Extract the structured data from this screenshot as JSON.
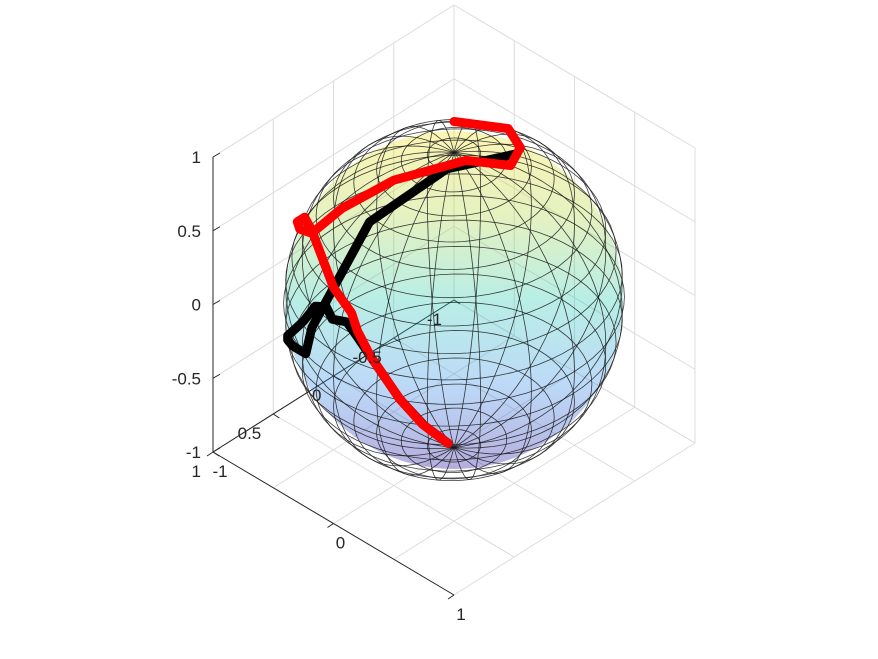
{
  "chart_data": {
    "type": "line",
    "kind": "3d-sphere-trajectory",
    "title": "",
    "xlabel": "",
    "ylabel": "",
    "zlabel": "",
    "xlim": [
      -1,
      1
    ],
    "ylim": [
      -1,
      1
    ],
    "zlim": [
      -1,
      1
    ],
    "x_ticks": [
      {
        "value": -1,
        "label": "-1"
      },
      {
        "value": 0,
        "label": "0"
      },
      {
        "value": 1,
        "label": "1"
      }
    ],
    "y_ticks": [
      {
        "value": -1,
        "label": "-1"
      },
      {
        "value": -0.5,
        "label": "-0.5"
      },
      {
        "value": 0,
        "label": "0"
      },
      {
        "value": 0.5,
        "label": "0.5"
      },
      {
        "value": 1,
        "label": "1"
      }
    ],
    "z_ticks": [
      {
        "value": -1,
        "label": "-1"
      },
      {
        "value": -0.5,
        "label": "-0.5"
      },
      {
        "value": 0,
        "label": "0"
      },
      {
        "value": 0.5,
        "label": "0.5"
      },
      {
        "value": 1,
        "label": "1"
      }
    ],
    "grid": true,
    "sphere": {
      "radius": 1,
      "colormap": "parula",
      "transparent": true
    },
    "series": [
      {
        "color": "#000000",
        "points": [
          [
            -0.05,
            0.0,
            -0.995
          ],
          [
            -0.25,
            0.0,
            -0.97
          ],
          [
            -0.45,
            0.0,
            -0.89
          ],
          [
            -0.69,
            0.0,
            -0.72
          ],
          [
            -0.78,
            0.02,
            -0.62
          ],
          [
            -0.84,
            0.05,
            -0.53
          ],
          [
            -0.85,
            0.1,
            -0.5
          ],
          [
            -0.86,
            0.15,
            -0.47
          ],
          [
            -0.9,
            0.16,
            -0.4
          ],
          [
            -0.9,
            0.25,
            -0.35
          ],
          [
            -0.85,
            0.4,
            -0.35
          ],
          [
            -0.78,
            0.55,
            -0.3
          ],
          [
            -0.7,
            0.68,
            -0.23
          ],
          [
            -0.6,
            0.78,
            -0.16
          ],
          [
            -0.48,
            0.86,
            -0.1
          ],
          [
            -0.35,
            0.93,
            -0.03
          ],
          [
            -0.27,
            0.96,
            0.0
          ],
          [
            -0.22,
            0.96,
            0.2
          ],
          [
            -0.1,
            0.6,
            0.79
          ],
          [
            0.07,
            0.13,
            0.99
          ],
          [
            0.2,
            -0.3,
            0.93
          ]
        ]
      },
      {
        "color": "#ff0000",
        "points": [
          [
            -0.05,
            0.0,
            -0.995
          ],
          [
            -0.26,
            0.0,
            -0.97
          ],
          [
            -0.45,
            0.0,
            -0.89
          ],
          [
            -0.69,
            0.0,
            -0.72
          ],
          [
            -0.78,
            0.0,
            -0.62
          ],
          [
            -0.8,
            0.0,
            -0.6
          ],
          [
            -0.85,
            0.0,
            -0.5
          ],
          [
            -0.95,
            0.05,
            -0.35
          ],
          [
            -0.98,
            0.2,
            0.1
          ],
          [
            -0.9,
            0.34,
            0.3
          ],
          [
            -0.78,
            0.52,
            0.42
          ],
          [
            -0.62,
            0.66,
            0.52
          ],
          [
            -0.48,
            0.7,
            0.58
          ],
          [
            -0.35,
            0.58,
            0.75
          ],
          [
            -0.15,
            0.35,
            0.92
          ],
          [
            0.1,
            0.0,
            0.995
          ],
          [
            0.27,
            -0.2,
            0.94
          ],
          [
            0.15,
            -0.4,
            0.9
          ],
          [
            -0.1,
            -0.55,
            0.83
          ],
          [
            -0.5,
            -0.5,
            0.71
          ]
        ]
      }
    ]
  }
}
